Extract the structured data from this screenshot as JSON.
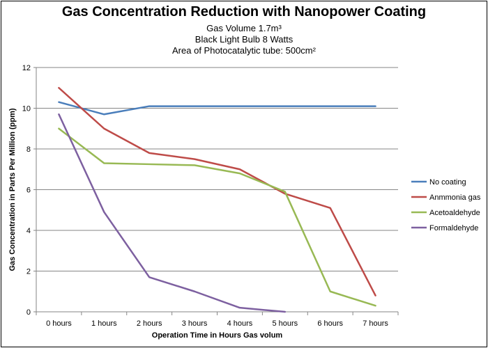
{
  "chart_data": {
    "type": "line",
    "title": "Gas Concentration Reduction with Nanopower Coating",
    "subtitles": [
      "Gas Volume 1.7m³",
      "Black Light Bulb 8 Watts",
      "Area of Photocatalytic tube:  500cm²"
    ],
    "xlabel": "Operation Time in Hours   Gas volum",
    "ylabel": "Gas Concentration in Parts Per Million (ppm)",
    "categories": [
      "0 hours",
      "1 hours",
      "2 hours",
      "3 hours",
      "4 hours",
      "5 hours",
      "6 hours",
      "7 hours"
    ],
    "ylim": [
      0,
      12
    ],
    "yticks": [
      0,
      2,
      4,
      6,
      8,
      10,
      12
    ],
    "grid": true,
    "legend_position": "right",
    "series": [
      {
        "name": "No coating",
        "color": "#4a7ebb",
        "values": [
          10.3,
          9.7,
          10.1,
          10.1,
          10.1,
          10.1,
          10.1,
          10.1
        ]
      },
      {
        "name": "Anmmonia gas",
        "color": "#be4b48",
        "values": [
          11.0,
          9.0,
          7.8,
          7.5,
          7.0,
          5.8,
          5.1,
          0.8
        ]
      },
      {
        "name": "Acetoaldehyde",
        "color": "#98b954",
        "values": [
          9.0,
          7.3,
          7.25,
          7.2,
          6.8,
          5.9,
          1.0,
          0.3
        ]
      },
      {
        "name": "Formaldehyde",
        "color": "#7d60a0",
        "values": [
          9.7,
          4.9,
          1.7,
          1.0,
          0.2,
          0.0,
          null,
          null
        ]
      }
    ]
  }
}
